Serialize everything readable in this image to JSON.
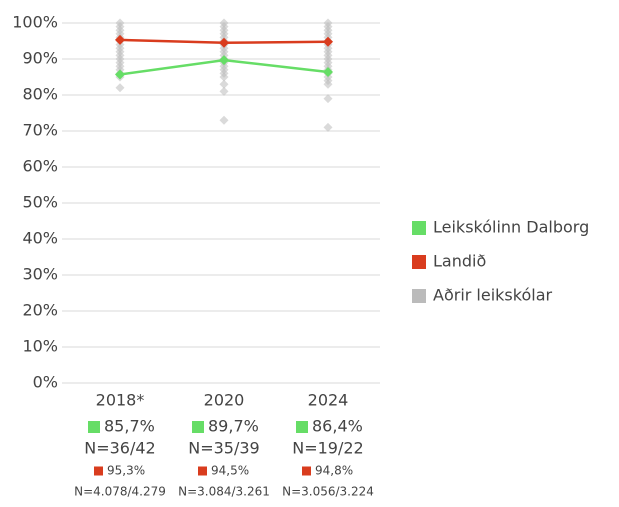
{
  "chart_data": {
    "type": "line",
    "categories": [
      "2018*",
      "2020",
      "2024"
    ],
    "ylim": [
      0,
      100
    ],
    "yticks": [
      {
        "value": 0,
        "label": "0%"
      },
      {
        "value": 10,
        "label": "10%"
      },
      {
        "value": 20,
        "label": "20%"
      },
      {
        "value": 30,
        "label": "30%"
      },
      {
        "value": 40,
        "label": "40%"
      },
      {
        "value": 50,
        "label": "50%"
      },
      {
        "value": 60,
        "label": "60%"
      },
      {
        "value": 70,
        "label": "70%"
      },
      {
        "value": 80,
        "label": "80%"
      },
      {
        "value": 90,
        "label": "90%"
      },
      {
        "value": 100,
        "label": "100%"
      }
    ],
    "grid": true,
    "series": [
      {
        "name": "Leikskólinn Dalborg",
        "color": "#66dd66",
        "values": [
          85.7,
          89.7,
          86.4
        ],
        "value_labels": [
          "85,7%",
          "89,7%",
          "86,4%"
        ],
        "n_labels": [
          "N=36/42",
          "N=35/39",
          "N=19/22"
        ]
      },
      {
        "name": "Landið",
        "color": "#d93c1e",
        "values": [
          95.3,
          94.5,
          94.8
        ],
        "value_labels": [
          "95,3%",
          "94,5%",
          "94,8%"
        ],
        "n_labels": [
          "N=4.078/4.279",
          "N=3.084/3.261",
          "N=3.056/3.224"
        ]
      },
      {
        "name": "Aðrir leikskólar",
        "color": "#bbbbbb",
        "type": "scatter",
        "values": [
          [
            100,
            99,
            98,
            97,
            96,
            95,
            94,
            93,
            92,
            91,
            90,
            89,
            88,
            87,
            86,
            85,
            82
          ],
          [
            100,
            99,
            98,
            97,
            96,
            95,
            94,
            93,
            92,
            91,
            90,
            89,
            88,
            87,
            86,
            85,
            83,
            81,
            73
          ],
          [
            100,
            99,
            98,
            97,
            96,
            95,
            94,
            93,
            92,
            91,
            90,
            89,
            88,
            87,
            86,
            85,
            84,
            83,
            79,
            71
          ]
        ]
      }
    ]
  }
}
